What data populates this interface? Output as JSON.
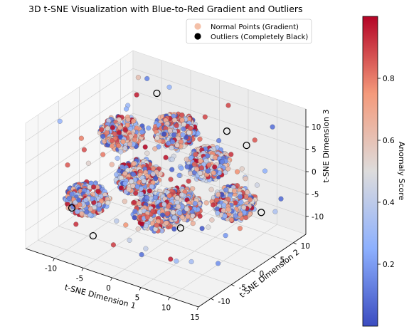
{
  "chart_data": {
    "type": "scatter",
    "projection": "3d",
    "title": "3D t-SNE Visualization with Blue-to-Red Gradient and Outliers",
    "xlabel": "t-SNE Dimension 1",
    "ylabel": "t-SNE Dimension 2",
    "zlabel": "t-SNE Dimension 3",
    "xlim": [
      -15,
      15
    ],
    "ylim": [
      -13,
      13
    ],
    "zlim": [
      -14,
      14
    ],
    "xticks": [
      "-10",
      "-5",
      "0",
      "5",
      "10",
      "15"
    ],
    "yticks": [
      "-10",
      "-5",
      "0",
      "5",
      "10"
    ],
    "zticks": [
      "-10",
      "-5",
      "0",
      "5",
      "10"
    ],
    "grid": true,
    "legend_position": "top-right",
    "colormap": "coolwarm",
    "colorbar": {
      "label": "Anomaly Score",
      "range": [
        0,
        1
      ],
      "ticks": [
        "0.2",
        "0.4",
        "0.6",
        "0.8"
      ]
    },
    "series": [
      {
        "name": "Normal Points (Gradient)",
        "color": "#f4c0a8",
        "clusters": [
          {
            "center": [
              -9,
              2,
              5
            ],
            "spread": 3.2,
            "count": 260
          },
          {
            "center": [
              -4,
              8,
              4
            ],
            "spread": 3.2,
            "count": 260
          },
          {
            "center": [
              3,
              6,
              1
            ],
            "spread": 3.2,
            "count": 260
          },
          {
            "center": [
              -2,
              -4,
              2
            ],
            "spread": 3.2,
            "count": 260
          },
          {
            "center": [
              6,
              -5,
              0
            ],
            "spread": 3.2,
            "count": 260
          },
          {
            "center": [
              -8,
              -8,
              -3
            ],
            "spread": 3.2,
            "count": 260
          },
          {
            "center": [
              0,
              -2,
              -6
            ],
            "spread": 3.6,
            "count": 300
          },
          {
            "center": [
              9,
              4,
              -4
            ],
            "spread": 3.2,
            "count": 260
          }
        ],
        "scattered_count": 120
      },
      {
        "name": "Outliers (Completely Black)",
        "color": "#000000",
        "points": [
          [
            -12,
            -6,
            -8
          ],
          [
            -4,
            -12,
            -7
          ],
          [
            4,
            -2,
            -8
          ],
          [
            13,
            5,
            -5
          ],
          [
            2,
            12,
            4
          ],
          [
            9,
            7,
            7
          ],
          [
            -8,
            9,
            10
          ]
        ]
      }
    ]
  }
}
